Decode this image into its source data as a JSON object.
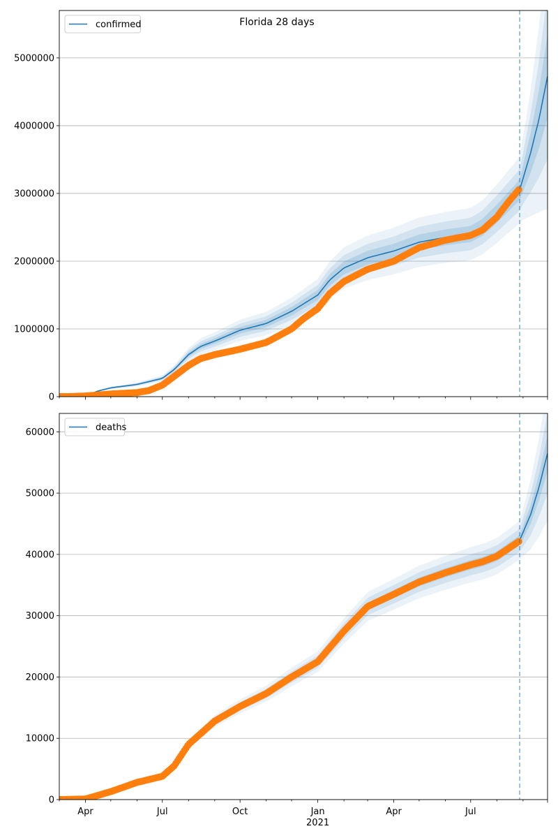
{
  "figure": {
    "title": "Florida 28 days"
  },
  "colors": {
    "model": "#1f77b4",
    "observed": "#ff7f0e",
    "band": "#1f77b4",
    "grid": "#b0b0b0",
    "vline": "#1f77b4"
  },
  "chart_data": [
    {
      "type": "line",
      "title": "",
      "xlabel": "",
      "ylabel": "",
      "x_axis_kind": "date",
      "xlim": [
        "2020-03-01",
        "2021-09-30"
      ],
      "ylim": [
        0,
        5700000
      ],
      "yticks": [
        0,
        1000000,
        2000000,
        3000000,
        4000000,
        5000000
      ],
      "ytick_labels": [
        "0",
        "1000000",
        "2000000",
        "3000000",
        "4000000",
        "5000000"
      ],
      "xtick_labels": [
        "Apr",
        "Jul",
        "Oct",
        "Jan",
        "Apr",
        "Jul"
      ],
      "xtick_dates": [
        "2020-04-01",
        "2020-07-01",
        "2020-10-01",
        "2021-01-01",
        "2021-04-01",
        "2021-07-01"
      ],
      "year_label": "2021",
      "grid": "horizontal",
      "legend": {
        "position": "top-left",
        "entries": [
          "confirmed"
        ]
      },
      "forecast_start": "2021-08-28",
      "series": [
        {
          "name": "confirmed",
          "kind": "model-line",
          "points": [
            [
              "2020-03-01",
              0
            ],
            [
              "2020-04-01",
              10000
            ],
            [
              "2020-04-15",
              80000
            ],
            [
              "2020-05-01",
              130000
            ],
            [
              "2020-06-01",
              180000
            ],
            [
              "2020-07-01",
              270000
            ],
            [
              "2020-07-15",
              400000
            ],
            [
              "2020-08-01",
              620000
            ],
            [
              "2020-08-15",
              740000
            ],
            [
              "2020-09-01",
              820000
            ],
            [
              "2020-10-01",
              980000
            ],
            [
              "2020-11-01",
              1080000
            ],
            [
              "2020-12-01",
              1260000
            ],
            [
              "2021-01-01",
              1500000
            ],
            [
              "2021-01-15",
              1720000
            ],
            [
              "2021-02-01",
              1900000
            ],
            [
              "2021-03-01",
              2050000
            ],
            [
              "2021-04-01",
              2150000
            ],
            [
              "2021-05-01",
              2280000
            ],
            [
              "2021-06-01",
              2350000
            ],
            [
              "2021-07-01",
              2400000
            ],
            [
              "2021-07-15",
              2500000
            ],
            [
              "2021-08-01",
              2700000
            ],
            [
              "2021-08-28",
              3050000
            ],
            [
              "2021-09-10",
              3600000
            ],
            [
              "2021-09-20",
              4100000
            ],
            [
              "2021-09-30",
              4730000
            ]
          ],
          "band_widths": [
            0.05,
            0.1,
            0.16
          ]
        },
        {
          "kind": "observed-points",
          "points": [
            [
              "2020-03-01",
              0
            ],
            [
              "2020-03-15",
              2000
            ],
            [
              "2020-04-01",
              10000
            ],
            [
              "2020-05-01",
              40000
            ],
            [
              "2020-06-01",
              60000
            ],
            [
              "2020-06-15",
              90000
            ],
            [
              "2020-07-01",
              170000
            ],
            [
              "2020-07-15",
              300000
            ],
            [
              "2020-08-01",
              460000
            ],
            [
              "2020-08-15",
              560000
            ],
            [
              "2020-09-01",
              620000
            ],
            [
              "2020-10-01",
              700000
            ],
            [
              "2020-11-01",
              800000
            ],
            [
              "2020-12-01",
              1000000
            ],
            [
              "2020-12-15",
              1150000
            ],
            [
              "2021-01-01",
              1300000
            ],
            [
              "2021-01-15",
              1520000
            ],
            [
              "2021-02-01",
              1700000
            ],
            [
              "2021-03-01",
              1880000
            ],
            [
              "2021-04-01",
              2000000
            ],
            [
              "2021-05-01",
              2200000
            ],
            [
              "2021-06-01",
              2310000
            ],
            [
              "2021-07-01",
              2380000
            ],
            [
              "2021-07-15",
              2460000
            ],
            [
              "2021-08-01",
              2650000
            ],
            [
              "2021-08-15",
              2880000
            ],
            [
              "2021-08-28",
              3070000
            ]
          ]
        }
      ]
    },
    {
      "type": "line",
      "title": "",
      "xlabel": "",
      "ylabel": "",
      "x_axis_kind": "date",
      "xlim": [
        "2020-03-01",
        "2021-09-30"
      ],
      "ylim": [
        0,
        63000
      ],
      "yticks": [
        0,
        10000,
        20000,
        30000,
        40000,
        50000,
        60000
      ],
      "ytick_labels": [
        "0",
        "10000",
        "20000",
        "30000",
        "40000",
        "50000",
        "60000"
      ],
      "xtick_labels": [
        "Apr",
        "Jul",
        "Oct",
        "Jan",
        "Apr",
        "Jul"
      ],
      "xtick_dates": [
        "2020-04-01",
        "2020-07-01",
        "2020-10-01",
        "2021-01-01",
        "2021-04-01",
        "2021-07-01"
      ],
      "year_label": "2021",
      "grid": "horizontal",
      "legend": {
        "position": "top-left",
        "entries": [
          "deaths"
        ]
      },
      "forecast_start": "2021-08-28",
      "series": [
        {
          "name": "deaths",
          "kind": "model-line",
          "points": [
            [
              "2020-03-01",
              0
            ],
            [
              "2020-04-01",
              100
            ],
            [
              "2020-05-01",
              1200
            ],
            [
              "2020-06-01",
              2800
            ],
            [
              "2020-07-01",
              3800
            ],
            [
              "2020-07-15",
              5500
            ],
            [
              "2020-08-01",
              9000
            ],
            [
              "2020-09-01",
              12800
            ],
            [
              "2020-10-01",
              15200
            ],
            [
              "2020-11-01",
              17300
            ],
            [
              "2020-12-01",
              20000
            ],
            [
              "2021-01-01",
              22500
            ],
            [
              "2021-02-01",
              27500
            ],
            [
              "2021-03-01",
              31500
            ],
            [
              "2021-04-01",
              33500
            ],
            [
              "2021-05-01",
              35500
            ],
            [
              "2021-06-01",
              37000
            ],
            [
              "2021-07-01",
              38300
            ],
            [
              "2021-07-15",
              38800
            ],
            [
              "2021-08-01",
              39700
            ],
            [
              "2021-08-28",
              42300
            ],
            [
              "2021-09-10",
              46500
            ],
            [
              "2021-09-20",
              51000
            ],
            [
              "2021-09-30",
              56500
            ]
          ],
          "band_widths": [
            0.02,
            0.045,
            0.075
          ]
        },
        {
          "kind": "observed-points",
          "points": [
            [
              "2020-03-01",
              0
            ],
            [
              "2020-04-01",
              100
            ],
            [
              "2020-05-01",
              1300
            ],
            [
              "2020-06-01",
              2800
            ],
            [
              "2020-07-01",
              3800
            ],
            [
              "2020-07-15",
              5500
            ],
            [
              "2020-08-01",
              9000
            ],
            [
              "2020-09-01",
              12800
            ],
            [
              "2020-10-01",
              15200
            ],
            [
              "2020-11-01",
              17300
            ],
            [
              "2020-12-01",
              20000
            ],
            [
              "2021-01-01",
              22500
            ],
            [
              "2021-02-01",
              27500
            ],
            [
              "2021-03-01",
              31500
            ],
            [
              "2021-04-01",
              33500
            ],
            [
              "2021-05-01",
              35500
            ],
            [
              "2021-06-01",
              37000
            ],
            [
              "2021-07-01",
              38300
            ],
            [
              "2021-07-15",
              38800
            ],
            [
              "2021-08-01",
              39700
            ],
            [
              "2021-08-28",
              42200
            ]
          ]
        }
      ]
    }
  ]
}
